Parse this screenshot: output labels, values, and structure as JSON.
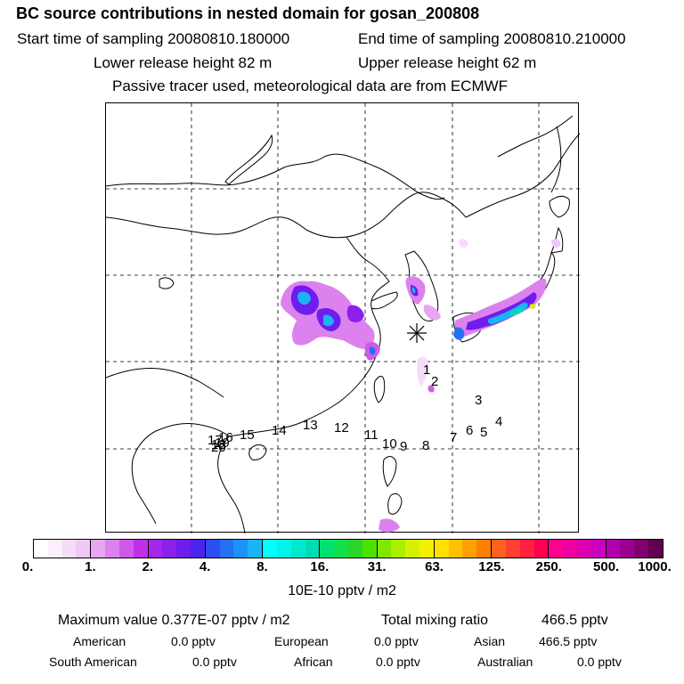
{
  "header": {
    "title": "BC  source contributions in nested domain for gosan_200808",
    "start_label": "Start time of sampling 20080810.180000",
    "end_label": "End time of sampling 20080810.210000",
    "lower_label": "Lower release height   82 m",
    "upper_label": "Upper release height   62 m",
    "note": "Passive tracer used, meteorological data are from ECMWF"
  },
  "map": {
    "receptor_marker": "receptor-star-icon",
    "trajectory_labels": [
      "1",
      "2",
      "3",
      "4",
      "5",
      "6",
      "7",
      "8",
      "9",
      "10",
      "11",
      "12",
      "13",
      "14",
      "15",
      "16",
      "17",
      "18",
      "19",
      "20"
    ]
  },
  "colorbar": {
    "tick_labels": [
      "0.",
      "1.",
      "2.",
      "4.",
      "8.",
      "16.",
      "31.",
      "63.",
      "125.",
      "250.",
      "500.",
      "1000."
    ],
    "unit": "10E-10 pptv / m2",
    "groups": [
      [
        "#ffffff",
        "#fbeefd",
        "#f5dcf9",
        "#efc8f7"
      ],
      [
        "#e6a6f2",
        "#dc82ee",
        "#cf5ae9",
        "#c030e8"
      ],
      [
        "#a526ea",
        "#8b1fec",
        "#6f1ced",
        "#4c24f0"
      ],
      [
        "#2f4cf2",
        "#2470f3",
        "#1b92f5",
        "#19b4f6"
      ],
      [
        "#00ffff",
        "#00f5e6",
        "#00e8cc",
        "#00dcb2"
      ],
      [
        "#00e070",
        "#11e04a",
        "#2ad52a",
        "#4ee000"
      ],
      [
        "#80e800",
        "#aaee00",
        "#d4f200",
        "#f4f000"
      ],
      [
        "#ffe000",
        "#ffc000",
        "#ffa000",
        "#ff8000"
      ],
      [
        "#ff6020",
        "#ff4030",
        "#ff2040",
        "#ff0050"
      ],
      [
        "#ff0090",
        "#ee00a0",
        "#dd00b0",
        "#cc00c0"
      ],
      [
        "#b000b0",
        "#9a0090",
        "#800070",
        "#600050"
      ]
    ]
  },
  "summary": {
    "max_label": "Maximum value  0.377E-07 pptv / m2",
    "total_label": "Total mixing ratio",
    "total_value": "466.5 pptv",
    "regions": [
      {
        "name": "American",
        "value": "0.0 pptv"
      },
      {
        "name": "European",
        "value": "0.0 pptv"
      },
      {
        "name": "Asian",
        "value": "466.5 pptv"
      },
      {
        "name": "South American",
        "value": "0.0 pptv"
      },
      {
        "name": "African",
        "value": "0.0 pptv"
      },
      {
        "name": "Australian",
        "value": "0.0 pptv"
      }
    ]
  }
}
